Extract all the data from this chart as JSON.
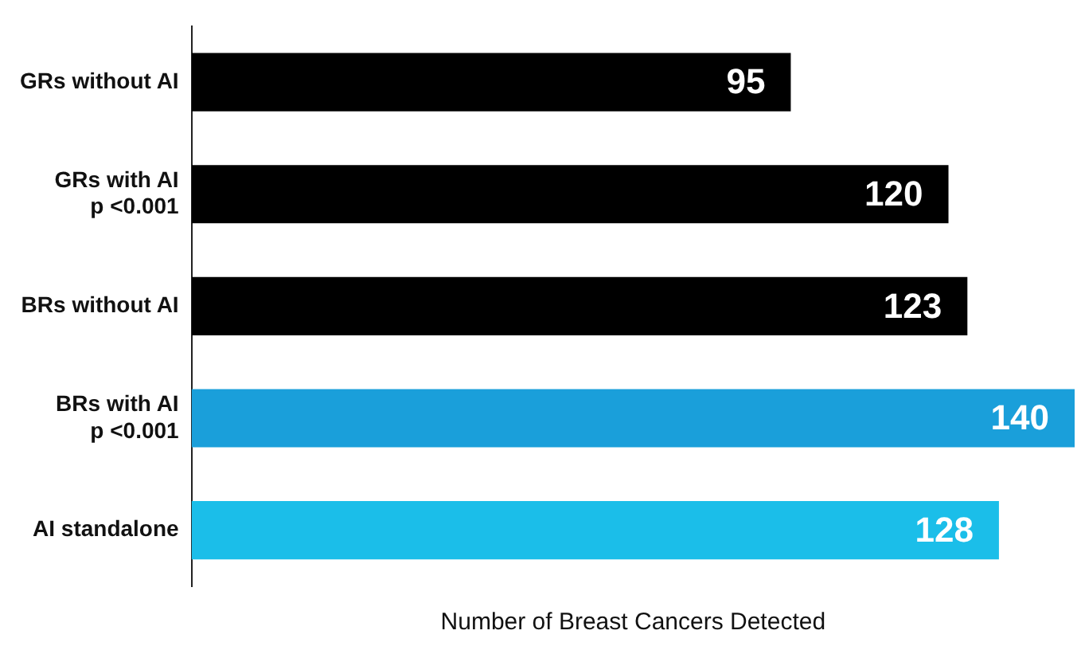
{
  "chart_data": {
    "type": "bar",
    "orientation": "horizontal",
    "categories": [
      "GRs without AI",
      "GRs with AI\np <0.001",
      "BRs without AI",
      "BRs with AI\np <0.001",
      "AI standalone"
    ],
    "values": [
      95,
      120,
      123,
      140,
      128
    ],
    "colors": [
      "#000000",
      "#000000",
      "#000000",
      "#1a9fda",
      "#1bbee9"
    ],
    "xlabel": "Number of Breast Cancers Detected",
    "tick_labels": "y",
    "data_labels": true,
    "legend": false
  }
}
